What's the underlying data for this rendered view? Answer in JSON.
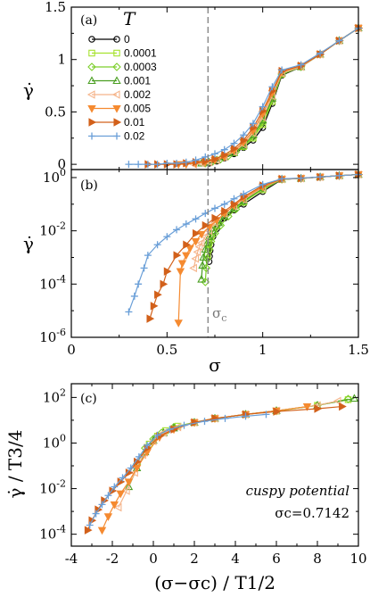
{
  "chart_data": [
    {
      "panel": "(a)",
      "type": "line",
      "xlim": [
        0,
        1.5
      ],
      "ylim": [
        -0.05,
        1.5
      ],
      "yscale": "linear",
      "ylabel": "γ̇",
      "xticks": [
        "0",
        "0.5",
        "1",
        "1.5"
      ],
      "yticks": [
        {
          "v": 0,
          "t": "0"
        },
        {
          "v": 0.5,
          "t": "0.5"
        },
        {
          "v": 1,
          "t": "1"
        },
        {
          "v": 1.5,
          "t": "1.5"
        }
      ],
      "legend_title": "T",
      "legend_position": "top-left",
      "vline": 0.7142,
      "series": [
        {
          "name": "0",
          "color": "#000000",
          "marker": "circle",
          "x": [
            0.72,
            0.76,
            0.8,
            0.85,
            0.9,
            0.95,
            1.0,
            1.05,
            1.1,
            1.2,
            1.3,
            1.4,
            1.5
          ],
          "y": [
            0.01,
            0.03,
            0.06,
            0.1,
            0.16,
            0.23,
            0.35,
            0.58,
            0.85,
            0.93,
            1.05,
            1.18,
            1.3
          ]
        },
        {
          "name": "0.0001",
          "color": "#a6e22e",
          "marker": "square",
          "x": [
            0.72,
            0.76,
            0.8,
            0.85,
            0.9,
            0.95,
            1.0,
            1.05,
            1.1,
            1.2,
            1.3,
            1.4,
            1.5
          ],
          "y": [
            0.02,
            0.04,
            0.07,
            0.11,
            0.17,
            0.25,
            0.38,
            0.6,
            0.86,
            0.93,
            1.05,
            1.18,
            1.3
          ]
        },
        {
          "name": "0.0003",
          "color": "#7ccf2a",
          "marker": "diamond",
          "x": [
            0.7,
            0.74,
            0.78,
            0.82,
            0.86,
            0.9,
            0.95,
            1.0,
            1.05,
            1.1,
            1.2,
            1.3,
            1.4,
            1.5
          ],
          "y": [
            0.01,
            0.03,
            0.05,
            0.08,
            0.12,
            0.17,
            0.26,
            0.4,
            0.62,
            0.86,
            0.93,
            1.05,
            1.18,
            1.3
          ]
        },
        {
          "name": "0.001",
          "color": "#4a9e22",
          "marker": "triangle-up",
          "x": [
            0.68,
            0.72,
            0.76,
            0.8,
            0.85,
            0.9,
            0.95,
            1.0,
            1.05,
            1.1,
            1.2,
            1.3,
            1.4,
            1.5
          ],
          "y": [
            0.01,
            0.02,
            0.04,
            0.07,
            0.11,
            0.18,
            0.28,
            0.42,
            0.63,
            0.87,
            0.93,
            1.05,
            1.18,
            1.3
          ]
        },
        {
          "name": "0.002",
          "color": "#f5b48a",
          "marker": "triangle-left",
          "x": [
            0.64,
            0.68,
            0.72,
            0.76,
            0.8,
            0.85,
            0.9,
            0.95,
            1.0,
            1.05,
            1.1,
            1.2,
            1.3,
            1.4,
            1.5
          ],
          "y": [
            0.0,
            0.01,
            0.02,
            0.04,
            0.07,
            0.12,
            0.19,
            0.3,
            0.45,
            0.65,
            0.87,
            0.93,
            1.05,
            1.18,
            1.3
          ]
        },
        {
          "name": "0.005",
          "color": "#f58a30",
          "marker": "triangle-down",
          "x": [
            0.56,
            0.6,
            0.65,
            0.7,
            0.75,
            0.8,
            0.85,
            0.9,
            0.95,
            1.0,
            1.05,
            1.1,
            1.2,
            1.3,
            1.4,
            1.5
          ],
          "y": [
            0.0,
            0.0,
            0.01,
            0.02,
            0.04,
            0.07,
            0.13,
            0.21,
            0.32,
            0.48,
            0.68,
            0.88,
            0.94,
            1.05,
            1.18,
            1.3
          ]
        },
        {
          "name": "0.01",
          "color": "#d2601a",
          "marker": "triangle-right",
          "x": [
            0.4,
            0.45,
            0.5,
            0.55,
            0.6,
            0.65,
            0.7,
            0.75,
            0.8,
            0.85,
            0.9,
            0.95,
            1.0,
            1.05,
            1.1,
            1.2,
            1.3,
            1.4,
            1.5
          ],
          "y": [
            0.0,
            0.0,
            0.0,
            0.0,
            0.01,
            0.02,
            0.03,
            0.05,
            0.09,
            0.15,
            0.23,
            0.35,
            0.51,
            0.7,
            0.89,
            0.94,
            1.05,
            1.18,
            1.3
          ]
        },
        {
          "name": "0.02",
          "color": "#6a9fd8",
          "marker": "plus",
          "x": [
            0.3,
            0.35,
            0.4,
            0.45,
            0.5,
            0.55,
            0.6,
            0.65,
            0.7,
            0.75,
            0.8,
            0.85,
            0.9,
            0.95,
            1.0,
            1.05,
            1.1,
            1.2,
            1.3,
            1.4,
            1.5
          ],
          "y": [
            0.0,
            0.0,
            0.0,
            0.0,
            0.01,
            0.01,
            0.02,
            0.04,
            0.07,
            0.1,
            0.14,
            0.2,
            0.28,
            0.39,
            0.55,
            0.74,
            0.9,
            0.95,
            1.06,
            1.18,
            1.3
          ]
        }
      ]
    },
    {
      "panel": "(b)",
      "type": "line",
      "xlim": [
        0,
        1.5
      ],
      "ylim": [
        1e-06,
        2
      ],
      "yscale": "log",
      "xlabel": "σ",
      "ylabel": "γ̇",
      "xticks": [
        "0",
        "0.5",
        "1",
        "1.5"
      ],
      "yticks": [
        {
          "v": 1e-06,
          "t": "10",
          "e": "-6"
        },
        {
          "v": 0.0001,
          "t": "10",
          "e": "-4"
        },
        {
          "v": 0.01,
          "t": "10",
          "e": "-2"
        },
        {
          "v": 1,
          "t": "10",
          "e": "0"
        }
      ],
      "vline": 0.7142,
      "annotation": {
        "text": "σ",
        "sub": "c"
      },
      "series": [
        {
          "name": "0",
          "color": "#000000",
          "marker": "circle",
          "x": [
            0.72,
            0.722,
            0.725,
            0.73,
            0.74,
            0.76,
            0.8,
            0.85,
            0.9,
            1.0,
            1.1,
            1.2,
            1.3,
            1.4,
            1.5
          ],
          "y": [
            0.0007,
            0.0011,
            0.0018,
            0.003,
            0.006,
            0.012,
            0.03,
            0.06,
            0.1,
            0.3,
            0.85,
            0.93,
            1.05,
            1.18,
            1.3
          ]
        },
        {
          "name": "0.0001",
          "color": "#a6e22e",
          "marker": "square",
          "x": [
            0.712,
            0.716,
            0.72,
            0.73,
            0.74,
            0.76,
            0.8,
            0.85,
            0.9,
            1.0,
            1.1,
            1.2,
            1.3,
            1.4,
            1.5
          ],
          "y": [
            0.0012,
            0.002,
            0.0035,
            0.006,
            0.01,
            0.016,
            0.035,
            0.07,
            0.12,
            0.35,
            0.86,
            0.93,
            1.05,
            1.18,
            1.3
          ]
        },
        {
          "name": "0.0003",
          "color": "#7ccf2a",
          "marker": "diamond",
          "x": [
            0.7,
            0.705,
            0.71,
            0.72,
            0.73,
            0.75,
            0.78,
            0.82,
            0.86,
            0.9,
            1.0,
            1.1,
            1.2,
            1.3,
            1.4,
            1.5
          ],
          "y": [
            0.00012,
            0.0004,
            0.0009,
            0.002,
            0.004,
            0.008,
            0.016,
            0.035,
            0.065,
            0.12,
            0.38,
            0.86,
            0.93,
            1.05,
            1.18,
            1.3
          ]
        },
        {
          "name": "0.001",
          "color": "#4a9e22",
          "marker": "triangle-up",
          "x": [
            0.68,
            0.685,
            0.69,
            0.7,
            0.71,
            0.72,
            0.74,
            0.77,
            0.8,
            0.85,
            0.9,
            1.0,
            1.1,
            1.2,
            1.3,
            1.4,
            1.5
          ],
          "y": [
            0.00015,
            0.0005,
            0.001,
            0.002,
            0.0035,
            0.006,
            0.01,
            0.02,
            0.035,
            0.07,
            0.13,
            0.4,
            0.87,
            0.93,
            1.05,
            1.18,
            1.3
          ]
        },
        {
          "name": "0.002",
          "color": "#f5b48a",
          "marker": "triangle-left",
          "x": [
            0.64,
            0.65,
            0.66,
            0.67,
            0.68,
            0.7,
            0.72,
            0.75,
            0.8,
            0.85,
            0.9,
            1.0,
            1.1,
            1.2,
            1.3,
            1.4,
            1.5
          ],
          "y": [
            0.0004,
            0.0009,
            0.0016,
            0.0025,
            0.0035,
            0.006,
            0.01,
            0.02,
            0.045,
            0.085,
            0.15,
            0.42,
            0.87,
            0.93,
            1.05,
            1.18,
            1.3
          ]
        },
        {
          "name": "0.005",
          "color": "#f58a30",
          "marker": "triangle-down",
          "x": [
            0.56,
            0.57,
            0.58,
            0.6,
            0.62,
            0.65,
            0.68,
            0.72,
            0.76,
            0.8,
            0.85,
            0.9,
            1.0,
            1.1,
            1.2,
            1.3,
            1.4,
            1.5
          ],
          "y": [
            3.5e-06,
            0.0003,
            0.0006,
            0.0012,
            0.0022,
            0.004,
            0.0075,
            0.014,
            0.025,
            0.045,
            0.09,
            0.17,
            0.45,
            0.88,
            0.94,
            1.05,
            1.18,
            1.3
          ]
        },
        {
          "name": "0.01",
          "color": "#d2601a",
          "marker": "triangle-right",
          "x": [
            0.41,
            0.43,
            0.45,
            0.48,
            0.5,
            0.55,
            0.6,
            0.65,
            0.7,
            0.75,
            0.8,
            0.85,
            0.9,
            1.0,
            1.1,
            1.2,
            1.3,
            1.4,
            1.5
          ],
          "y": [
            5e-06,
            1.5e-05,
            4e-05,
            0.0001,
            0.0003,
            0.0012,
            0.003,
            0.008,
            0.016,
            0.03,
            0.055,
            0.1,
            0.19,
            0.5,
            0.89,
            0.94,
            1.05,
            1.18,
            1.3
          ]
        },
        {
          "name": "0.02",
          "color": "#6a9fd8",
          "marker": "plus",
          "x": [
            0.3,
            0.33,
            0.35,
            0.38,
            0.4,
            0.45,
            0.5,
            0.55,
            0.6,
            0.65,
            0.7,
            0.75,
            0.8,
            0.85,
            0.9,
            1.0,
            1.1,
            1.2,
            1.3,
            1.4,
            1.5
          ],
          "y": [
            9e-06,
            3.5e-05,
            0.0001,
            0.0004,
            0.0012,
            0.003,
            0.006,
            0.011,
            0.018,
            0.028,
            0.045,
            0.07,
            0.1,
            0.16,
            0.24,
            0.55,
            0.9,
            0.95,
            1.06,
            1.18,
            1.3
          ]
        }
      ]
    },
    {
      "panel": "(c)",
      "type": "line",
      "xlim": [
        -4,
        10
      ],
      "ylim": [
        3e-05,
        400
      ],
      "yscale": "log",
      "xlabel": "(σ−σc) / T1/2",
      "ylabel": "γ̇ / T3/4",
      "xticks": [
        "-4",
        "-2",
        "0",
        "2",
        "4",
        "6",
        "8",
        "10"
      ],
      "yticks": [
        {
          "v": 0.0001,
          "t": "10",
          "e": "-4"
        },
        {
          "v": 0.01,
          "t": "10",
          "e": "-2"
        },
        {
          "v": 1,
          "t": "10",
          "e": "0"
        },
        {
          "v": 100,
          "t": "10",
          "e": "2"
        }
      ],
      "annotations": [
        "cuspy potential",
        "σc=0.7142"
      ],
      "series": [
        {
          "name": "0.0001",
          "color": "#a6e22e",
          "marker": "square",
          "x": [
            -0.2,
            0.2,
            0.6,
            1.2,
            2.0,
            3.0,
            4.5,
            6.0,
            8.0,
            9.5
          ],
          "y": [
            0.9,
            2.0,
            3.5,
            5.5,
            8,
            12,
            18,
            25,
            45,
            80
          ]
        },
        {
          "name": "0.0003",
          "color": "#7ccf2a",
          "marker": "diamond",
          "x": [
            -0.8,
            -0.4,
            0.0,
            0.4,
            1.0,
            2.0,
            3.0,
            4.5,
            6.0,
            8.0,
            9.5
          ],
          "y": [
            0.12,
            0.6,
            1.5,
            2.8,
            5,
            8,
            12,
            18,
            26,
            45,
            85
          ]
        },
        {
          "name": "0.001",
          "color": "#4a9e22",
          "marker": "triangle-up",
          "x": [
            -1.2,
            -0.8,
            -0.4,
            0.0,
            0.5,
            1.0,
            2.0,
            3.0,
            4.5,
            6.0,
            8.0,
            9.8
          ],
          "y": [
            0.012,
            0.08,
            0.4,
            1.3,
            2.8,
            4.5,
            8,
            12,
            18,
            26,
            45,
            90
          ]
        },
        {
          "name": "0.002",
          "color": "#f5b48a",
          "marker": "triangle-left",
          "x": [
            -1.7,
            -1.3,
            -0.9,
            -0.5,
            0.0,
            0.5,
            1.2,
            2.0,
            3.0,
            4.5,
            6.0,
            8.0,
            9.0
          ],
          "y": [
            0.0015,
            0.008,
            0.05,
            0.3,
            1.2,
            2.8,
            5,
            8,
            12,
            18,
            26,
            45,
            70
          ]
        },
        {
          "name": "0.005",
          "color": "#f58a30",
          "marker": "triangle-down",
          "x": [
            -2.5,
            -2.2,
            -1.9,
            -1.6,
            -1.2,
            -0.8,
            -0.3,
            0.3,
            1.0,
            2.0,
            3.0,
            4.5,
            6.0,
            7.5
          ],
          "y": [
            0.00015,
            0.0006,
            0.002,
            0.006,
            0.02,
            0.08,
            0.4,
            1.8,
            4,
            8,
            12,
            18,
            26,
            40
          ]
        },
        {
          "name": "0.01",
          "color": "#d2601a",
          "marker": "triangle-right",
          "x": [
            -3.2,
            -3.0,
            -2.7,
            -2.4,
            -2.0,
            -1.6,
            -1.2,
            -0.8,
            -0.3,
            0.3,
            1.0,
            2.0,
            3.0,
            4.5,
            6.0,
            8.0,
            9.2
          ],
          "y": [
            0.00015,
            0.0004,
            0.0012,
            0.003,
            0.008,
            0.02,
            0.05,
            0.15,
            0.6,
            2.0,
            4,
            8,
            12,
            18,
            24,
            32,
            40
          ]
        },
        {
          "name": "0.02",
          "color": "#6a9fd8",
          "marker": "plus",
          "x": [
            -3.1,
            -2.8,
            -2.5,
            -2.2,
            -1.9,
            -1.5,
            -1.1,
            -0.7,
            -0.3,
            0.2,
            0.8,
            1.5,
            2.5,
            3.5,
            4.5,
            5.5
          ],
          "y": [
            0.00025,
            0.0008,
            0.002,
            0.005,
            0.012,
            0.03,
            0.08,
            0.25,
            0.8,
            2.2,
            4,
            6,
            9,
            12,
            15,
            18
          ]
        }
      ]
    }
  ]
}
